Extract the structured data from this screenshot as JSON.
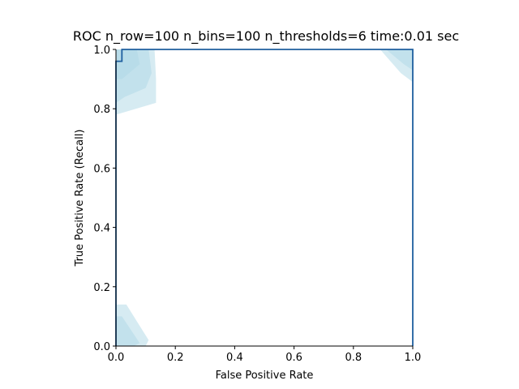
{
  "chart_data": {
    "type": "line",
    "title": "ROC n_row=100 n_bins=100 n_thresholds=6 time:0.01 sec",
    "xlabel": "False Positive Rate",
    "ylabel": "True Positive Rate (Recall)",
    "xlim": [
      0,
      1
    ],
    "ylim": [
      0,
      1
    ],
    "grid": false,
    "x_ticks": [
      "0.0",
      "0.2",
      "0.4",
      "0.6",
      "0.8",
      "1.0"
    ],
    "y_ticks": [
      "0.0",
      "0.2",
      "0.4",
      "0.6",
      "0.8",
      "1.0"
    ],
    "line_color": "#1f5f9f",
    "band_color": "#add8e6",
    "roc_curve": {
      "x": [
        0.0,
        0.0,
        0.02,
        0.02,
        1.0,
        1.0
      ],
      "y": [
        0.0,
        0.96,
        0.96,
        1.0,
        1.0,
        0.0
      ]
    },
    "confidence_regions": [
      {
        "x": [
          0.0,
          0.13,
          0.135,
          0.135,
          0.0
        ],
        "y": [
          1.0,
          1.0,
          0.9,
          0.82,
          0.78
        ]
      },
      {
        "x": [
          0.0,
          0.11,
          0.12,
          0.1,
          0.03,
          0.0
        ],
        "y": [
          1.0,
          1.0,
          0.92,
          0.87,
          0.84,
          0.82
        ]
      },
      {
        "x": [
          0.0,
          0.07,
          0.08,
          0.02,
          0.0
        ],
        "y": [
          1.0,
          1.0,
          0.95,
          0.9,
          0.9
        ]
      },
      {
        "x": [
          0.0,
          0.035,
          0.11,
          0.1,
          0.03,
          0.0
        ],
        "y": [
          0.14,
          0.14,
          0.02,
          0.0,
          0.0,
          0.0
        ]
      },
      {
        "x": [
          0.0,
          0.02,
          0.08,
          0.06,
          0.0
        ],
        "y": [
          0.1,
          0.1,
          0.01,
          0.0,
          0.0
        ]
      },
      {
        "x": [
          0.89,
          1.0,
          1.0,
          0.96
        ],
        "y": [
          1.0,
          1.0,
          0.89,
          0.92
        ]
      },
      {
        "x": [
          0.91,
          1.0,
          1.0,
          0.97
        ],
        "y": [
          1.0,
          1.0,
          0.93,
          0.95
        ]
      }
    ]
  }
}
